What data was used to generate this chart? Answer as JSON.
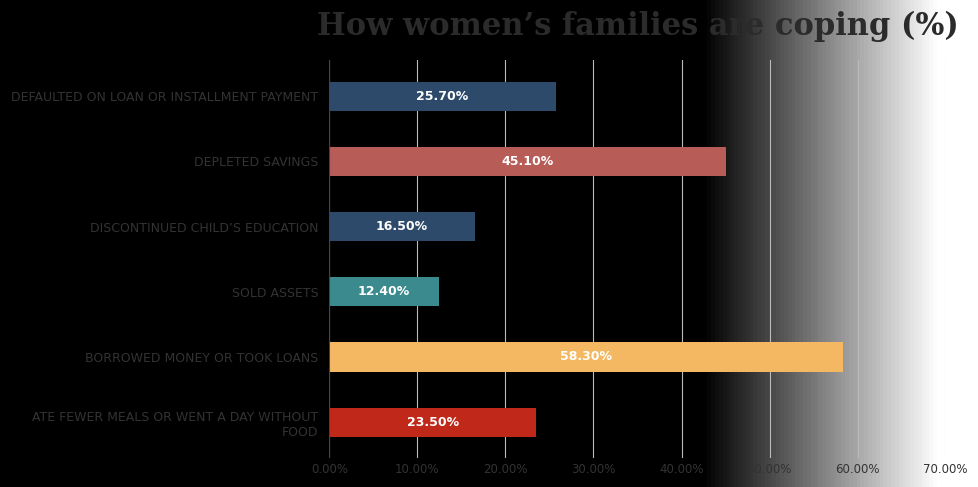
{
  "title": "How women’s families are coping (%)",
  "categories": [
    "DEFAULTED ON LOAN OR INSTALLMENT PAYMENT",
    "DEPLETED SAVINGS",
    "DISCONTINUED CHILD’S EDUCATION",
    "SOLD ASSETS",
    "BORROWED MONEY OR TOOK LOANS",
    "ATE FEWER MEALS OR WENT A DAY WITHOUT\nFOOD"
  ],
  "values": [
    25.7,
    45.1,
    16.5,
    12.4,
    58.3,
    23.5
  ],
  "bar_colors": [
    "#2E4A6B",
    "#B85C58",
    "#2E4A6B",
    "#3A8A8E",
    "#F5B862",
    "#C0281A"
  ],
  "bar_labels": [
    "25.70%",
    "45.10%",
    "16.50%",
    "12.40%",
    "58.30%",
    "23.50%"
  ],
  "xlim": [
    0,
    70
  ],
  "xticks": [
    0,
    10,
    20,
    30,
    40,
    50,
    60,
    70
  ],
  "xtick_labels": [
    "0.00%",
    "10.00%",
    "20.00%",
    "30.00%",
    "40.00%",
    "50.00%",
    "60.00%",
    "70.00%"
  ],
  "title_fontsize": 22,
  "label_fontsize": 9,
  "value_fontsize": 9,
  "background_color_left": "#C8C8C8",
  "background_color_right": "#F0F0F0",
  "title_color": "#2B2B2B",
  "grid_color": "#BBBBBB",
  "axis_line_color": "#444444"
}
